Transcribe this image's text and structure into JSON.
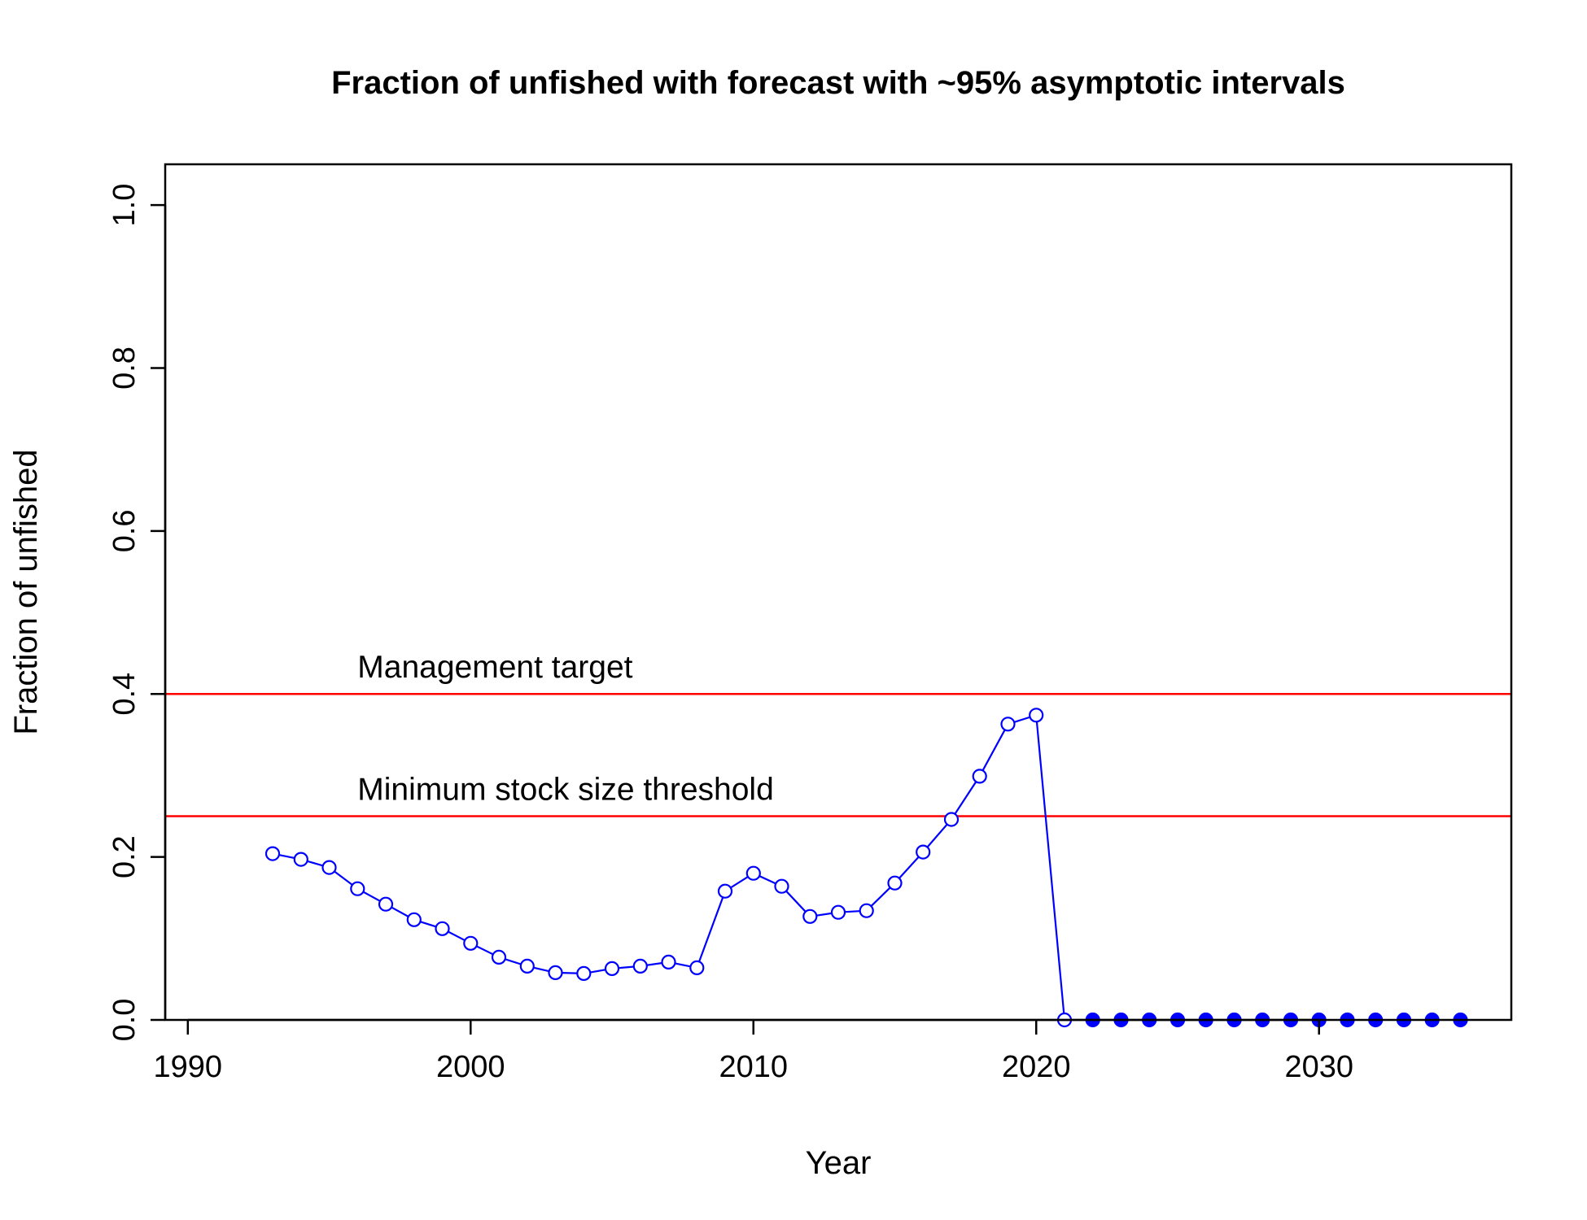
{
  "chart_data": {
    "type": "line",
    "title": "Fraction of unfished with forecast with ~95% asymptotic intervals",
    "xlabel": "Year",
    "ylabel": "Fraction of unfished",
    "xlim": [
      1989.2,
      2036.8
    ],
    "ylim": [
      0,
      1.05
    ],
    "x_ticks": [
      1990,
      2000,
      2010,
      2020,
      2030
    ],
    "y_ticks": [
      0.0,
      0.2,
      0.4,
      0.6,
      0.8,
      1.0
    ],
    "x_tick_labels": [
      "1990",
      "2000",
      "2010",
      "2020",
      "2030"
    ],
    "y_tick_labels": [
      "0.0",
      "0.2",
      "0.4",
      "0.6",
      "0.8",
      "1.0"
    ],
    "grid": false,
    "reference_lines": [
      {
        "label": "Management target",
        "y": 0.4,
        "color": "#ff0000"
      },
      {
        "label": "Minimum stock size threshold",
        "y": 0.25,
        "color": "#ff0000"
      }
    ],
    "series": [
      {
        "color": "#0000ff",
        "marker": "open-circle",
        "x": [
          1993,
          1994,
          1995,
          1996,
          1997,
          1998,
          1999,
          2000,
          2001,
          2002,
          2003,
          2004,
          2005,
          2006,
          2007,
          2008,
          2009,
          2010,
          2011,
          2012,
          2013,
          2014,
          2015,
          2016,
          2017,
          2018,
          2019,
          2020,
          2021
        ],
        "y": [
          0.204,
          0.197,
          0.187,
          0.161,
          0.142,
          0.123,
          0.112,
          0.094,
          0.077,
          0.066,
          0.058,
          0.057,
          0.063,
          0.066,
          0.071,
          0.064,
          0.158,
          0.18,
          0.164,
          0.127,
          0.132,
          0.134,
          0.168,
          0.206,
          0.246,
          0.299,
          0.363,
          0.374,
          0.0
        ]
      },
      {
        "color": "#0000ff",
        "marker": "filled-circle",
        "x": [
          2022,
          2023,
          2024,
          2025,
          2026,
          2027,
          2028,
          2029,
          2030,
          2031,
          2032,
          2033,
          2034,
          2035
        ],
        "y": [
          0,
          0,
          0,
          0,
          0,
          0,
          0,
          0,
          0,
          0,
          0,
          0,
          0,
          0
        ]
      }
    ]
  }
}
